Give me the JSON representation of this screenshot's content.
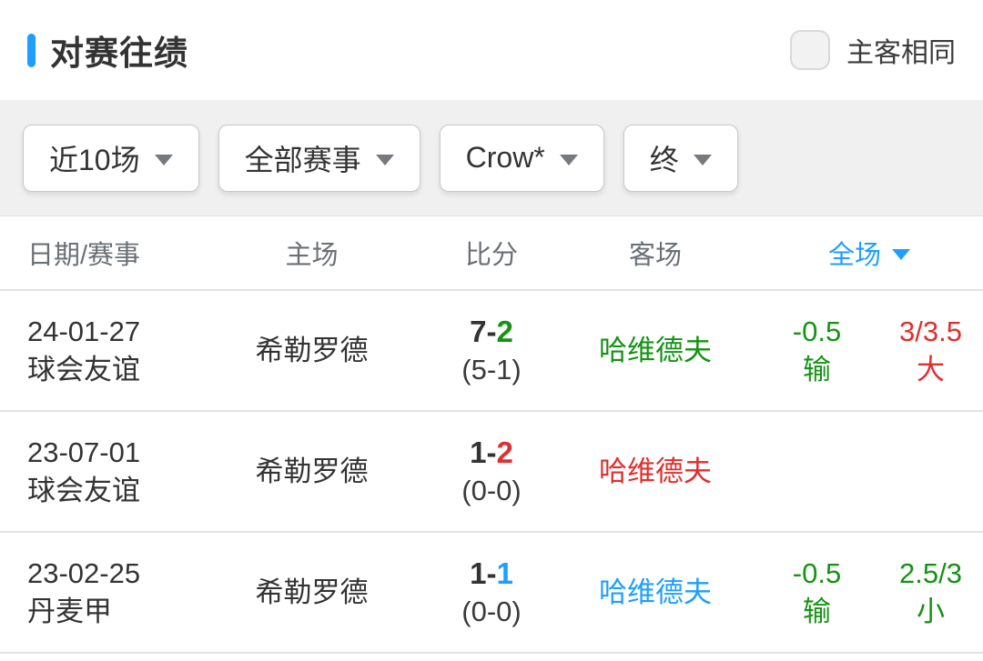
{
  "colors": {
    "accent_blue": "#1E9FFF",
    "green": "#149314",
    "red": "#E12E2E",
    "dark_text": "#333333",
    "header_gray": "#6b6f76"
  },
  "header": {
    "title": "对赛往绩",
    "checkbox_label": "主客相同",
    "checkbox_checked": false
  },
  "filters": {
    "range": "近10场",
    "competition": "全部赛事",
    "team": "Crow*",
    "status": "终"
  },
  "table": {
    "columns": {
      "date": "日期/赛事",
      "home": "主场",
      "score": "比分",
      "away": "客场",
      "fulltime": "全场"
    },
    "rows": [
      {
        "date": "24-01-27",
        "league": "球会友谊",
        "home": "希勒罗德",
        "score_home": "7-",
        "score_away": "2",
        "score_away_color": "green",
        "half_score": "(5-1)",
        "away": "哈维德夫",
        "away_color": "green",
        "handicap_line": "-0.5",
        "handicap_result": "输",
        "handicap_color": "green",
        "ou_line": "3/3.5",
        "ou_result": "大",
        "ou_color": "red"
      },
      {
        "date": "23-07-01",
        "league": "球会友谊",
        "home": "希勒罗德",
        "score_home": "1-",
        "score_away": "2",
        "score_away_color": "red",
        "half_score": "(0-0)",
        "away": "哈维德夫",
        "away_color": "red",
        "handicap_line": "",
        "handicap_result": "",
        "handicap_color": "",
        "ou_line": "",
        "ou_result": "",
        "ou_color": ""
      },
      {
        "date": "23-02-25",
        "league": "丹麦甲",
        "home": "希勒罗德",
        "score_home": "1-",
        "score_away": "1",
        "score_away_color": "blue",
        "half_score": "(0-0)",
        "away": "哈维德夫",
        "away_color": "blue",
        "handicap_line": "-0.5",
        "handicap_result": "输",
        "handicap_color": "green",
        "ou_line": "2.5/3",
        "ou_result": "小",
        "ou_color": "green"
      }
    ]
  }
}
